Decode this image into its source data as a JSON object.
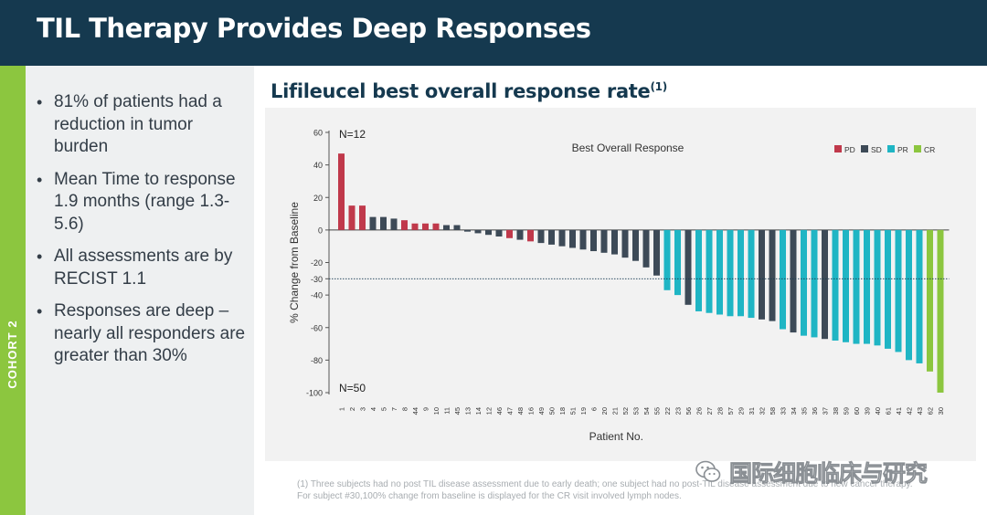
{
  "header": {
    "title": "TIL Therapy Provides Deep Responses"
  },
  "sidebar": {
    "cohort_label": "COHORT 2"
  },
  "bullets": [
    "81% of patients had a reduction in tumor burden",
    "Mean Time to response 1.9 months (range 1.3-5.6)",
    "All assessments are by RECIST 1.1",
    "Responses are deep – nearly all responders are greater than 30%"
  ],
  "chart_title": {
    "text": "Lifileucel best overall response rate",
    "sup": "(1)"
  },
  "footnote": {
    "line1": "(1) Three subjects had no post TIL disease assessment due to early death; one subject had no post-TIL disease assessment due to new cancer therapy.",
    "line2": "For subject #30,100% change from baseline is displayed for the CR visit involved lymph nodes."
  },
  "watermark": {
    "text": "国际细胞临床与研究",
    "icon": "wechat-icon"
  },
  "chart_data": {
    "type": "bar",
    "title": "Best Overall Response",
    "xlabel": "Patient No.",
    "ylabel": "% Change from Baseline",
    "ylim": [
      -100,
      60
    ],
    "yticks": [
      60,
      40,
      20,
      0,
      -20,
      -30,
      -40,
      -60,
      -80,
      -100
    ],
    "reference_line": -30,
    "grid": false,
    "legend_position": "top-right",
    "annotations": {
      "top": "N=12",
      "bottom": "N=50"
    },
    "legend": [
      {
        "key": "PD",
        "label": "PD",
        "color": "#c0394b"
      },
      {
        "key": "SD",
        "label": "SD",
        "color": "#3d4a57"
      },
      {
        "key": "PR",
        "label": "PR",
        "color": "#1fb5c4"
      },
      {
        "key": "CR",
        "label": "CR",
        "color": "#8cc63f"
      }
    ],
    "categories": [
      "1",
      "2",
      "3",
      "4",
      "5",
      "7",
      "8",
      "44",
      "9",
      "10",
      "11",
      "45",
      "13",
      "14",
      "12",
      "46",
      "47",
      "48",
      "16",
      "49",
      "50",
      "18",
      "51",
      "19",
      "6",
      "20",
      "21",
      "52",
      "53",
      "54",
      "55",
      "22",
      "23",
      "56",
      "26",
      "27",
      "28",
      "57",
      "29",
      "31",
      "32",
      "58",
      "33",
      "34",
      "35",
      "36",
      "37",
      "38",
      "59",
      "60",
      "39",
      "40",
      "61",
      "41",
      "42",
      "43",
      "62",
      "30"
    ],
    "values": [
      47,
      15,
      15,
      8,
      8,
      7,
      6,
      4,
      4,
      4,
      3,
      3,
      -1,
      -2,
      -3,
      -4,
      -5,
      -6,
      -7,
      -8,
      -9,
      -10,
      -11,
      -12,
      -13,
      -14,
      -15,
      -17,
      -19,
      -23,
      -28,
      -37,
      -40,
      -46,
      -50,
      -51,
      -52,
      -53,
      -53,
      -54,
      -55,
      -56,
      -61,
      -63,
      -65,
      -66,
      -67,
      -68,
      -69,
      -70,
      -70,
      -71,
      -73,
      -75,
      -80,
      -82,
      -87,
      -100
    ],
    "responses": [
      "PD",
      "PD",
      "PD",
      "SD",
      "SD",
      "SD",
      "PD",
      "PD",
      "PD",
      "PD",
      "SD",
      "SD",
      "SD",
      "SD",
      "SD",
      "SD",
      "PD",
      "SD",
      "PD",
      "SD",
      "SD",
      "SD",
      "SD",
      "SD",
      "SD",
      "SD",
      "SD",
      "SD",
      "SD",
      "SD",
      "SD",
      "PR",
      "PR",
      "SD",
      "PR",
      "PR",
      "PR",
      "PR",
      "PR",
      "PR",
      "SD",
      "SD",
      "PR",
      "SD",
      "PR",
      "PR",
      "SD",
      "PR",
      "PR",
      "PR",
      "PR",
      "PR",
      "PR",
      "PR",
      "PR",
      "PR",
      "CR",
      "CR"
    ]
  }
}
